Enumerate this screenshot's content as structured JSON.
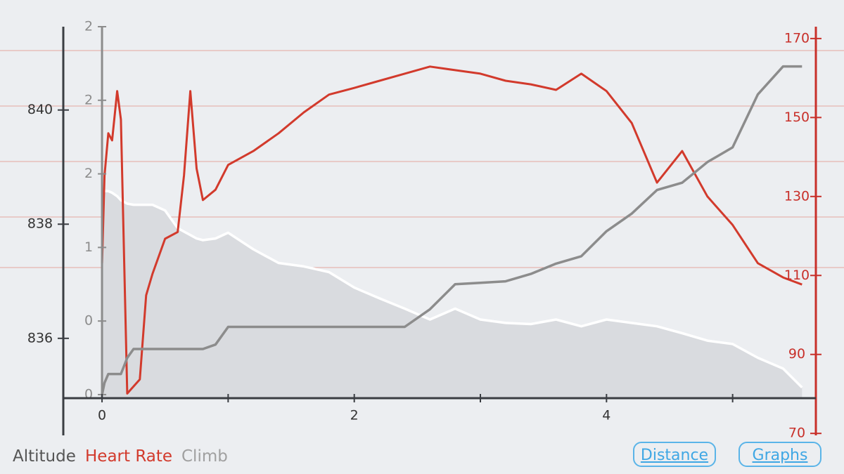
{
  "chart_data": {
    "type": "line",
    "x": [
      0,
      0.02,
      0.05,
      0.08,
      0.12,
      0.15,
      0.2,
      0.25,
      0.3,
      0.35,
      0.4,
      0.5,
      0.6,
      0.65,
      0.7,
      0.75,
      0.8,
      0.9,
      1.0,
      1.2,
      1.4,
      1.6,
      1.8,
      2.0,
      2.2,
      2.4,
      2.6,
      2.8,
      3.0,
      3.2,
      3.4,
      3.6,
      3.8,
      4.0,
      4.2,
      4.4,
      4.6,
      4.8,
      5.0,
      5.2,
      5.4,
      5.55
    ],
    "xlim": [
      -0.307,
      5.66
    ],
    "xticks": [
      0,
      2,
      4
    ],
    "xminor_ticks": [
      1,
      3,
      5
    ],
    "ylim": [
      834.3,
      841.46
    ],
    "yticks": [
      836,
      838,
      840
    ],
    "y2lim": [
      69.5,
      173
    ],
    "y2ticks": [
      70,
      90,
      110,
      130,
      150,
      170
    ],
    "y3lim": [
      -0.277,
      2.5
    ],
    "y3ticks": [
      0,
      {
        "value": 0.5,
        "label": "0"
      },
      1,
      {
        "value": 1.5,
        "label": "2"
      },
      2,
      {
        "value": 2.5,
        "label": "2"
      }
    ],
    "series": [
      {
        "name": "Altitude",
        "color": "#ffffff",
        "fill": "#d9dbdf",
        "values": [
          838.61,
          838.58,
          838.58,
          838.55,
          838.49,
          838.42,
          838.36,
          838.34,
          838.34,
          838.34,
          838.34,
          838.24,
          837.93,
          837.87,
          837.81,
          837.75,
          837.72,
          837.75,
          837.85,
          837.56,
          837.32,
          837.26,
          837.16,
          836.89,
          836.7,
          836.52,
          836.33,
          836.52,
          836.33,
          836.27,
          836.25,
          836.33,
          836.21,
          836.33,
          836.27,
          836.21,
          836.09,
          835.96,
          835.9,
          835.66,
          835.47,
          835.14
        ]
      },
      {
        "name": "Heart Rate",
        "color": "#d23a2c",
        "axis": "y2",
        "values": [
          113.1,
          135.3,
          146,
          144.2,
          156.7,
          149.5,
          80.1,
          81.9,
          83.7,
          105,
          110.4,
          119.3,
          121,
          135.3,
          156.7,
          137.1,
          129.1,
          131.7,
          138,
          141.5,
          146,
          151.3,
          155.8,
          157.5,
          159.3,
          161.1,
          162.9,
          162,
          161.1,
          159.3,
          158.4,
          157,
          161.1,
          156.7,
          148.6,
          133.5,
          141.5,
          130,
          122.8,
          113.1,
          109.5,
          107.7
        ]
      },
      {
        "name": "Climb",
        "color": "#8c8c8c",
        "axis": "y3",
        "values": [
          0,
          0.08,
          0.14,
          0.14,
          0.14,
          0.14,
          0.25,
          0.31,
          0.31,
          0.31,
          0.31,
          0.31,
          0.31,
          0.31,
          0.31,
          0.31,
          0.31,
          0.34,
          0.46,
          0.46,
          0.46,
          0.46,
          0.46,
          0.46,
          0.46,
          0.46,
          0.58,
          0.75,
          0.76,
          0.77,
          0.82,
          0.89,
          0.94,
          1.11,
          1.23,
          1.39,
          1.44,
          1.58,
          1.68,
          2.04,
          2.23,
          2.23
        ]
      }
    ]
  },
  "controls": {
    "buttons": [
      "Distance",
      "Graphs"
    ]
  }
}
